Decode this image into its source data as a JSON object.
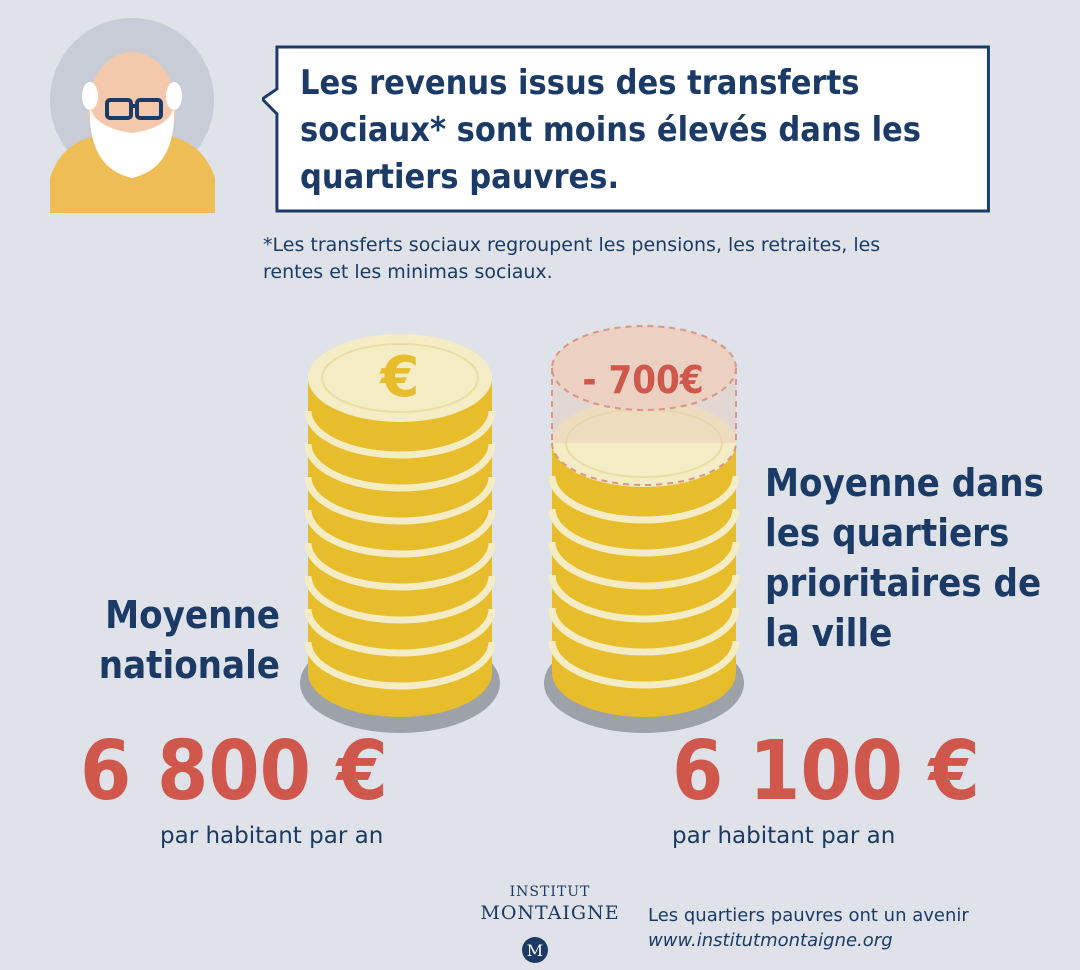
{
  "headline": "Les revenus issus des transferts sociaux* sont moins élevés dans les quartiers pauvres.",
  "footnote": "*Les transferts sociaux regroupent les pensions, les retraites, les rentes et les minimas sociaux.",
  "national": {
    "label": "Moyenne nationale",
    "amount": "6 800 €",
    "unit": "par habitant par an"
  },
  "qpv": {
    "label": "Moyenne dans les quartiers prioritaires de la ville",
    "amount": "6 100 €",
    "unit": "par habitant par an"
  },
  "difference_label": "- 700€",
  "euro_symbol": "€",
  "logo": {
    "line1": "INSTITUT",
    "line2": "MONTAIGNE",
    "mark": "M"
  },
  "slogan": "Les quartiers pauvres ont un avenir",
  "website": "www.institutmontaigne.org",
  "colors": {
    "background": "#dfe2e8",
    "navy": "#1b3b66",
    "red": "#d0574b",
    "gold": "#e8bd2c",
    "cream": "#f4ecc4",
    "shadow": "#9da1a8"
  }
}
